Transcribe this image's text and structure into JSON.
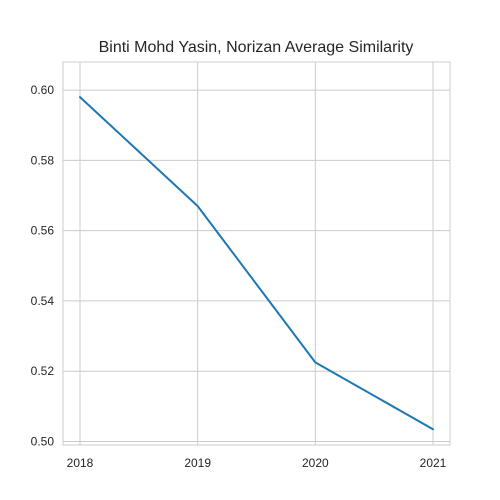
{
  "chart_data": {
    "type": "line",
    "title": "Binti Mohd Yasin, Norizan Average Similarity",
    "xlabel": "",
    "ylabel": "",
    "x": [
      "2018",
      "2019",
      "2020",
      "2021"
    ],
    "series": [
      {
        "values": [
          0.598,
          0.567,
          0.5225,
          0.5035
        ],
        "color": "#1f77b4"
      }
    ],
    "ylim": [
      0.499,
      0.608
    ],
    "yticks": [
      "0.50",
      "0.52",
      "0.54",
      "0.56",
      "0.58",
      "0.60"
    ],
    "grid": true,
    "legend": "none"
  }
}
